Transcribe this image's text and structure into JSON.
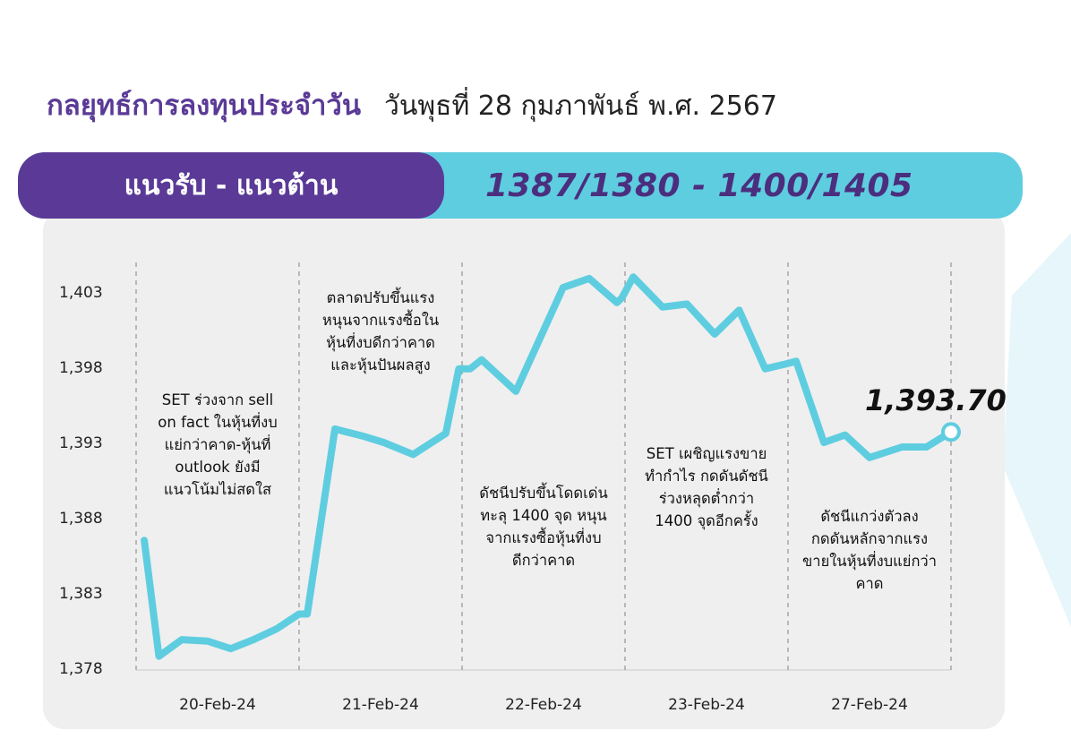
{
  "header": {
    "title": "กลยุทธ์การลงทุนประจำวัน",
    "date": "วันพุธที่ 28 กุมภาพันธ์ พ.ศ. 2567"
  },
  "band": {
    "label": "แนวรับ - แนวต้าน",
    "value": "1387/1380 - 1400/1405"
  },
  "colors": {
    "purple": "#5a3a96",
    "cyan": "#5fcde0",
    "panel": "#efefef",
    "line": "#5fcde0"
  },
  "chart_data": {
    "type": "line",
    "title": "",
    "xlabel": "",
    "ylabel": "",
    "ylim": [
      1378,
      1405
    ],
    "y_ticks": [
      1378,
      1383,
      1388,
      1393,
      1398,
      1403
    ],
    "y_tick_labels": [
      "1,378",
      "1,383",
      "1,388",
      "1,393",
      "1,398",
      "1,403"
    ],
    "categories": [
      "20-Feb-24",
      "21-Feb-24",
      "22-Feb-24",
      "23-Feb-24",
      "27-Feb-24"
    ],
    "grid": "vertical dashed separators between days",
    "last_value_label": "1,393.70",
    "series": [
      {
        "values": [
          [
            0.05,
            1386.5
          ],
          [
            0.14,
            1378.8
          ],
          [
            0.28,
            1379.9
          ],
          [
            0.44,
            1379.8
          ],
          [
            0.58,
            1379.3
          ],
          [
            0.72,
            1379.9
          ],
          [
            0.86,
            1380.6
          ],
          [
            1.0,
            1381.6
          ],
          [
            1.05,
            1381.6
          ],
          [
            1.22,
            1393.9
          ],
          [
            1.4,
            1393.4
          ],
          [
            1.52,
            1393.0
          ],
          [
            1.7,
            1392.2
          ],
          [
            1.9,
            1393.6
          ],
          [
            1.98,
            1397.9
          ],
          [
            2.05,
            1397.9
          ],
          [
            2.12,
            1398.5
          ],
          [
            2.33,
            1396.4
          ],
          [
            2.62,
            1403.3
          ],
          [
            2.78,
            1403.9
          ],
          [
            2.95,
            1402.3
          ],
          [
            2.98,
            1402.6
          ],
          [
            3.05,
            1404.0
          ],
          [
            3.23,
            1402.0
          ],
          [
            3.38,
            1402.2
          ],
          [
            3.55,
            1400.2
          ],
          [
            3.7,
            1401.8
          ],
          [
            3.86,
            1397.9
          ],
          [
            3.98,
            1398.2
          ],
          [
            4.05,
            1398.4
          ],
          [
            4.22,
            1393.0
          ],
          [
            4.35,
            1393.5
          ],
          [
            4.5,
            1392.0
          ],
          [
            4.7,
            1392.7
          ],
          [
            4.85,
            1392.7
          ],
          [
            5.0,
            1393.7
          ]
        ]
      }
    ],
    "annotations": [
      {
        "day": "20-Feb-24",
        "lines": [
          "SET ร่วงจาก sell",
          "on fact ในหุ้นที่งบ",
          "แย่กว่าคาด-หุ้นที่",
          "outlook ยังมี",
          "แนวโน้มไม่สดใส"
        ]
      },
      {
        "day": "21-Feb-24",
        "lines": [
          "ตลาดปรับขึ้นแรง",
          "หนุนจากแรงซื้อใน",
          "หุ้นที่งบดีกว่าคาด",
          "และหุ้นปันผลสูง"
        ]
      },
      {
        "day": "22-Feb-24",
        "lines": [
          "ดัชนีปรับขึ้นโดดเด่น",
          "ทะลุ 1400 จุด หนุน",
          "จากแรงซื้อหุ้นที่งบ",
          "ดีกว่าคาด"
        ]
      },
      {
        "day": "23-Feb-24",
        "lines": [
          "SET เผชิญแรงขาย",
          "ทำกำไร กดดันดัชนี",
          "ร่วงหลุดต่ำกว่า",
          "1400 จุดอีกครั้ง"
        ]
      },
      {
        "day": "27-Feb-24",
        "lines": [
          "ดัชนีแกว่งตัวลง",
          "กดดันหลักจากแรง",
          "ขายในหุ้นที่งบแย่กว่า",
          "คาด"
        ]
      }
    ]
  }
}
